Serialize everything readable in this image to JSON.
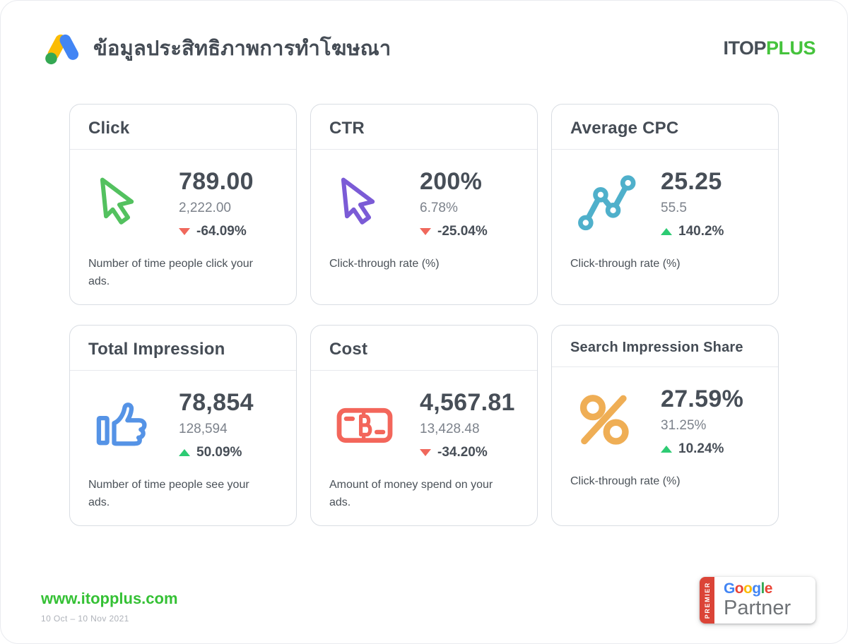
{
  "header": {
    "title": "ข้อมูลประสิทธิภาพการทำโฆษณา",
    "brand": {
      "itop": "ITOP",
      "plus": "PLUS"
    },
    "logo_icon": "google-ads-icon"
  },
  "colors": {
    "text_dark": "#474e57",
    "text_secondary": "#7c828b",
    "up": "#2dcb73",
    "down": "#f0685c",
    "brand_green": "#45c33c",
    "google_ads": {
      "blue": "#4285F4",
      "yellow": "#FBBC04",
      "green": "#34A853"
    },
    "google_letters": [
      "#4285F4",
      "#EA4335",
      "#FBBC05",
      "#4285F4",
      "#34A853",
      "#EA4335"
    ],
    "premier_red": "#db4437"
  },
  "cards": [
    {
      "id": "click",
      "title": "Click",
      "icon": "cursor-icon",
      "icon_color": "#53c15f",
      "value": "789.00",
      "secondary": "2,222.00",
      "change": "-64.09%",
      "direction": "down",
      "description": "Number of time people click your ads."
    },
    {
      "id": "ctr",
      "title": "CTR",
      "icon": "cursor-icon",
      "icon_color": "#7b5bd6",
      "value": "200%",
      "secondary": "6.78%",
      "change": "-25.04%",
      "direction": "down",
      "description": "Click-through rate (%)"
    },
    {
      "id": "average-cpc",
      "title": "Average CPC",
      "icon": "line-chart-icon",
      "icon_color": "#4fb0cb",
      "value": "25.25",
      "secondary": "55.5",
      "change": "140.2%",
      "direction": "up",
      "description": "Click-through rate (%)"
    },
    {
      "id": "total-impression",
      "title": "Total Impression",
      "icon": "thumbs-up-icon",
      "icon_color": "#5593e6",
      "value": "78,854",
      "secondary": "128,594",
      "change": "50.09%",
      "direction": "up",
      "description": "Number of time people see your ads."
    },
    {
      "id": "cost",
      "title": "Cost",
      "icon": "banknote-baht-icon",
      "icon_color": "#f3665b",
      "value": "4,567.81",
      "secondary": "13,428.48",
      "change": "-34.20%",
      "direction": "down",
      "description": "Amount of money spend on your ads."
    },
    {
      "id": "search-impression-share",
      "title": "Search Impression Share",
      "icon": "percent-icon",
      "icon_color": "#efae55",
      "value": "27.59%",
      "secondary": "31.25%",
      "change": "10.24%",
      "direction": "up",
      "description": "Click-through rate (%)"
    }
  ],
  "footer": {
    "website": "www.itopplus.com",
    "date_range": "10 Oct – 10 Nov 2021",
    "badge": {
      "premier": "PREMIER",
      "google": "Google",
      "partner": "Partner"
    }
  }
}
